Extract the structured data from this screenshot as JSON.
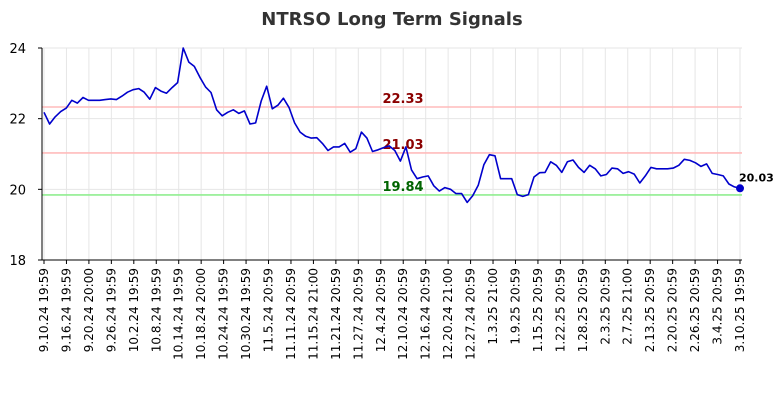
{
  "chart_data": {
    "type": "line",
    "title": "NTRSO Long Term Signals",
    "ylim": [
      18,
      24
    ],
    "yticks": [
      "18",
      "20",
      "22",
      "24"
    ],
    "grid": true,
    "x_tick_labels": [
      "9.10.24 19:59",
      "9.16.24 19:59",
      "9.20.24 20:00",
      "9.26.24 19:59",
      "10.2.24 19:59",
      "10.8.24 19:59",
      "10.14.24 19:59",
      "10.18.24 20:00",
      "10.24.24 19:59",
      "10.30.24 19:59",
      "11.5.24 20:59",
      "11.11.24 20:59",
      "11.15.24 21:00",
      "11.21.24 20:59",
      "11.27.24 20:59",
      "12.4.24 20:59",
      "12.10.24 20:59",
      "12.16.24 20:59",
      "12.20.24 21:00",
      "12.27.24 20:59",
      "1.3.25 21:00",
      "1.9.25 20:59",
      "1.15.25 20:59",
      "1.22.25 20:59",
      "1.28.25 20:59",
      "2.3.25 20:59",
      "2.7.25 21:00",
      "2.13.25 20:59",
      "2.20.25 20:59",
      "2.26.25 20:59",
      "3.4.25 20:59",
      "3.10.25 19:59"
    ],
    "series": [
      {
        "color": "#0000cc",
        "values": [
          22.18,
          21.85,
          22.05,
          22.2,
          22.3,
          22.52,
          22.44,
          22.6,
          22.52,
          22.52,
          22.52,
          22.54,
          22.56,
          22.54,
          22.64,
          22.75,
          22.82,
          22.85,
          22.75,
          22.55,
          22.88,
          22.78,
          22.72,
          22.88,
          23.02,
          24.0,
          23.6,
          23.48,
          23.17,
          22.9,
          22.74,
          22.25,
          22.08,
          22.18,
          22.25,
          22.15,
          22.22,
          21.85,
          21.88,
          22.5,
          22.92,
          22.28,
          22.38,
          22.58,
          22.32,
          21.88,
          21.62,
          21.5,
          21.45,
          21.46,
          21.3,
          21.1,
          21.2,
          21.2,
          21.3,
          21.05,
          21.15,
          21.62,
          21.45,
          21.07,
          21.12,
          21.18,
          21.23,
          21.1,
          20.8,
          21.2,
          20.55,
          20.3,
          20.35,
          20.38,
          20.1,
          19.95,
          20.05,
          20.0,
          19.88,
          19.88,
          19.63,
          19.82,
          20.12,
          20.7,
          20.98,
          20.95,
          20.3,
          20.3,
          20.3,
          19.85,
          19.8,
          19.85,
          20.35,
          20.47,
          20.48,
          20.78,
          20.68,
          20.48,
          20.78,
          20.83,
          20.62,
          20.48,
          20.68,
          20.58,
          20.38,
          20.42,
          20.6,
          20.58,
          20.45,
          20.5,
          20.43,
          20.18,
          20.38,
          20.62,
          20.58,
          20.58,
          20.58,
          20.6,
          20.68,
          20.85,
          20.82,
          20.75,
          20.65,
          20.72,
          20.45,
          20.42,
          20.38,
          20.15,
          20.07,
          20.03
        ]
      }
    ],
    "levels": [
      {
        "value": 22.33,
        "label": "22.33",
        "line_color": "#ffbbbb",
        "text_color": "#8b0000"
      },
      {
        "value": 21.03,
        "label": "21.03",
        "line_color": "#ffbbbb",
        "text_color": "#8b0000"
      },
      {
        "value": 19.84,
        "label": "19.84",
        "line_color": "#90ee90",
        "text_color": "#006400"
      }
    ],
    "last_point": {
      "value": 20.03,
      "label": "20.03",
      "color": "#0000cc"
    }
  }
}
